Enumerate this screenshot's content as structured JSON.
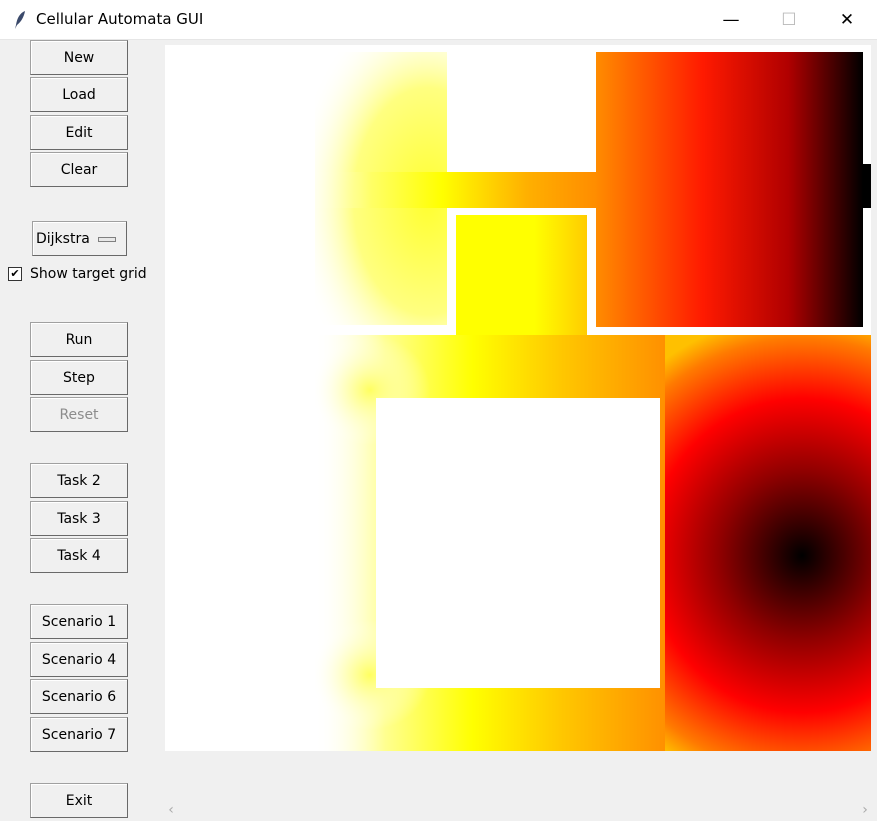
{
  "window": {
    "title": "Cellular Automata GUI",
    "controls": {
      "minimize": "—",
      "maximize": "☐",
      "close": "✕"
    }
  },
  "sidebar": {
    "file_buttons": [
      "New",
      "Load",
      "Edit",
      "Clear"
    ],
    "algorithm_select": {
      "value": "Dijkstra"
    },
    "show_target_grid": {
      "label": "Show target grid",
      "checked": true
    },
    "sim_buttons": [
      "Run",
      "Step",
      "Reset"
    ],
    "task_buttons": [
      "Task 2",
      "Task 3",
      "Task 4"
    ],
    "scenario_buttons": [
      "Scenario 1",
      "Scenario 4",
      "Scenario 6",
      "Scenario 7"
    ],
    "exit_label": "Exit"
  },
  "heatmap": {
    "colors": {
      "cold": "#ffffff",
      "mid1": "#ffff00",
      "mid2": "#ff8c00",
      "hot": "#ff0000",
      "max": "#000000"
    }
  },
  "scrollbar": {
    "left_arrow": "‹",
    "right_arrow": "›"
  }
}
